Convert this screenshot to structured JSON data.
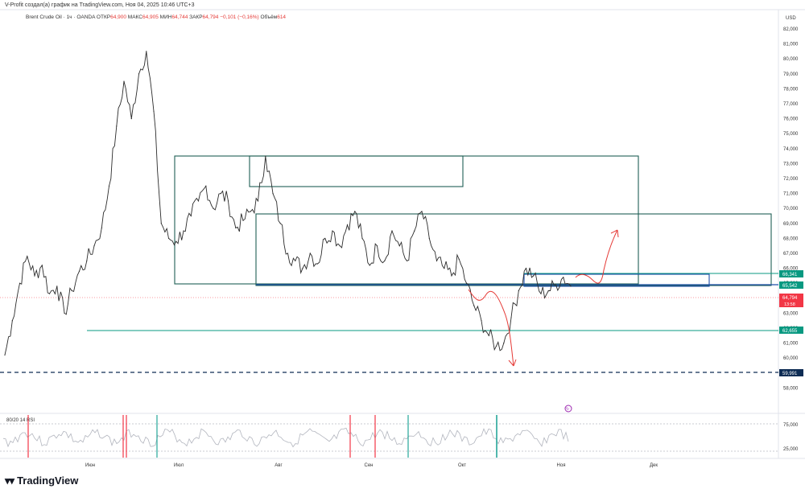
{
  "header": {
    "author_line": "V-Profit создал(а) график на TradingView.com, Ноя 04, 2025 10:46 UTC+3"
  },
  "symbol": {
    "name": "Brent Crude Oil · 1ч · OANDA",
    "open_label": "ОТКР",
    "open_value": "64,900",
    "high_label": "МАКС",
    "high_value": "64,905",
    "low_label": "МИН",
    "low_value": "64,744",
    "close_label": "ЗАКР",
    "close_value": "64,794",
    "change": "−0,101 (−0,16%)",
    "volume_label": "Объём",
    "volume_value": "614"
  },
  "price_axis": {
    "currency": "USD",
    "ticks": [
      "82,000",
      "81,000",
      "80,000",
      "79,000",
      "78,000",
      "77,000",
      "76,000",
      "75,000",
      "74,000",
      "73,000",
      "72,000",
      "71,000",
      "70,000",
      "69,000",
      "68,000",
      "67,000",
      "66,000",
      "65,000",
      "64,000",
      "63,000",
      "62,000",
      "61,000",
      "60,000",
      "59,000",
      "58,000"
    ]
  },
  "time_axis": {
    "labels": [
      "Июн",
      "Июл",
      "Авг",
      "Сен",
      "Окт",
      "Ноя",
      "Дек"
    ]
  },
  "price_labels": {
    "level_66341": "66,341",
    "level_65542": "65,542",
    "current_price": "64,794",
    "countdown": "13:58",
    "level_62655": "62,655",
    "level_59991": "59,991"
  },
  "rsi": {
    "label": "80/20 14 RSI",
    "ticks": [
      "75,000",
      "25,000"
    ]
  },
  "colors": {
    "price_line": "#2b2b2b",
    "up": "#26a69a",
    "zone_stroke": "#1f5f55",
    "zone_blue": "#1e4fa8",
    "level_green": "#089981",
    "level_navy": "#0d2c54",
    "current_red": "#f23645",
    "rsi_line": "#b2b5be"
  },
  "chart_data": {
    "type": "line",
    "title": "Brent Crude Oil · 1ч · OANDA",
    "xlabel": "",
    "ylabel": "USD",
    "ylim": [
      57.5,
      82.5
    ],
    "x_labels": [
      "Июн",
      "Июл",
      "Авг",
      "Сен",
      "Окт",
      "Ноя",
      "Дек"
    ],
    "series": [
      {
        "name": "Brent Crude Oil",
        "points": [
          [
            0,
            60.2
          ],
          [
            1,
            62.5
          ],
          [
            2,
            65.0
          ],
          [
            3,
            66.8
          ],
          [
            4,
            65.5
          ],
          [
            5,
            66.2
          ],
          [
            6,
            64.3
          ],
          [
            7,
            64.8
          ],
          [
            8,
            63.0
          ],
          [
            9,
            64.5
          ],
          [
            10,
            65.8
          ],
          [
            11,
            66.5
          ],
          [
            12,
            67.5
          ],
          [
            13,
            68.7
          ],
          [
            14,
            71.5
          ],
          [
            15,
            75.5
          ],
          [
            16,
            78.5
          ],
          [
            17,
            76.0
          ],
          [
            18,
            79.0
          ],
          [
            19,
            80.5
          ],
          [
            20,
            76.5
          ],
          [
            21,
            69.0
          ],
          [
            22,
            68.0
          ],
          [
            23,
            67.8
          ],
          [
            24,
            68.5
          ],
          [
            25,
            69.5
          ],
          [
            26,
            70.5
          ],
          [
            27,
            71.5
          ],
          [
            28,
            70.0
          ],
          [
            29,
            71.0
          ],
          [
            30,
            70.5
          ],
          [
            31,
            68.7
          ],
          [
            32,
            69.2
          ],
          [
            33,
            69.8
          ],
          [
            34,
            70.5
          ],
          [
            35,
            73.5
          ],
          [
            36,
            71.0
          ],
          [
            37,
            69.0
          ],
          [
            38,
            67.0
          ],
          [
            39,
            66.5
          ],
          [
            40,
            66.0
          ],
          [
            41,
            67.0
          ],
          [
            42,
            66.3
          ],
          [
            43,
            68.0
          ],
          [
            44,
            68.5
          ],
          [
            45,
            67.5
          ],
          [
            46,
            68.9
          ],
          [
            47,
            69.8
          ],
          [
            48,
            68.0
          ],
          [
            49,
            66.2
          ],
          [
            50,
            67.5
          ],
          [
            51,
            66.5
          ],
          [
            52,
            68.5
          ],
          [
            53,
            67.5
          ],
          [
            54,
            66.5
          ],
          [
            55,
            68.5
          ],
          [
            56,
            69.8
          ],
          [
            57,
            68.0
          ],
          [
            58,
            66.5
          ],
          [
            59,
            66.0
          ],
          [
            60,
            65.5
          ],
          [
            61,
            66.6
          ],
          [
            62,
            65.0
          ],
          [
            63,
            63.5
          ],
          [
            64,
            62.5
          ],
          [
            65,
            61.5
          ],
          [
            66,
            60.8
          ],
          [
            67,
            61.0
          ],
          [
            68,
            62.7
          ],
          [
            69,
            64.5
          ],
          [
            70,
            66.0
          ],
          [
            71,
            65.5
          ],
          [
            72,
            64.3
          ],
          [
            73,
            64.5
          ],
          [
            74,
            64.9
          ],
          [
            75,
            65.4
          ],
          [
            76,
            64.8
          ]
        ]
      }
    ],
    "annotations": {
      "zones": [
        {
          "price_top": 73.9,
          "price_bottom": 65.6,
          "label": ""
        },
        {
          "price_top": 73.9,
          "price_bottom": 71.9,
          "label": ""
        },
        {
          "price_top": 70.1,
          "price_bottom": 65.5,
          "label": ""
        },
        {
          "price_top": 66.4,
          "price_bottom": 65.5,
          "label": ""
        }
      ],
      "horizontal_levels": [
        66.341,
        65.542,
        62.655,
        59.991
      ],
      "current_price": 64.794
    }
  }
}
